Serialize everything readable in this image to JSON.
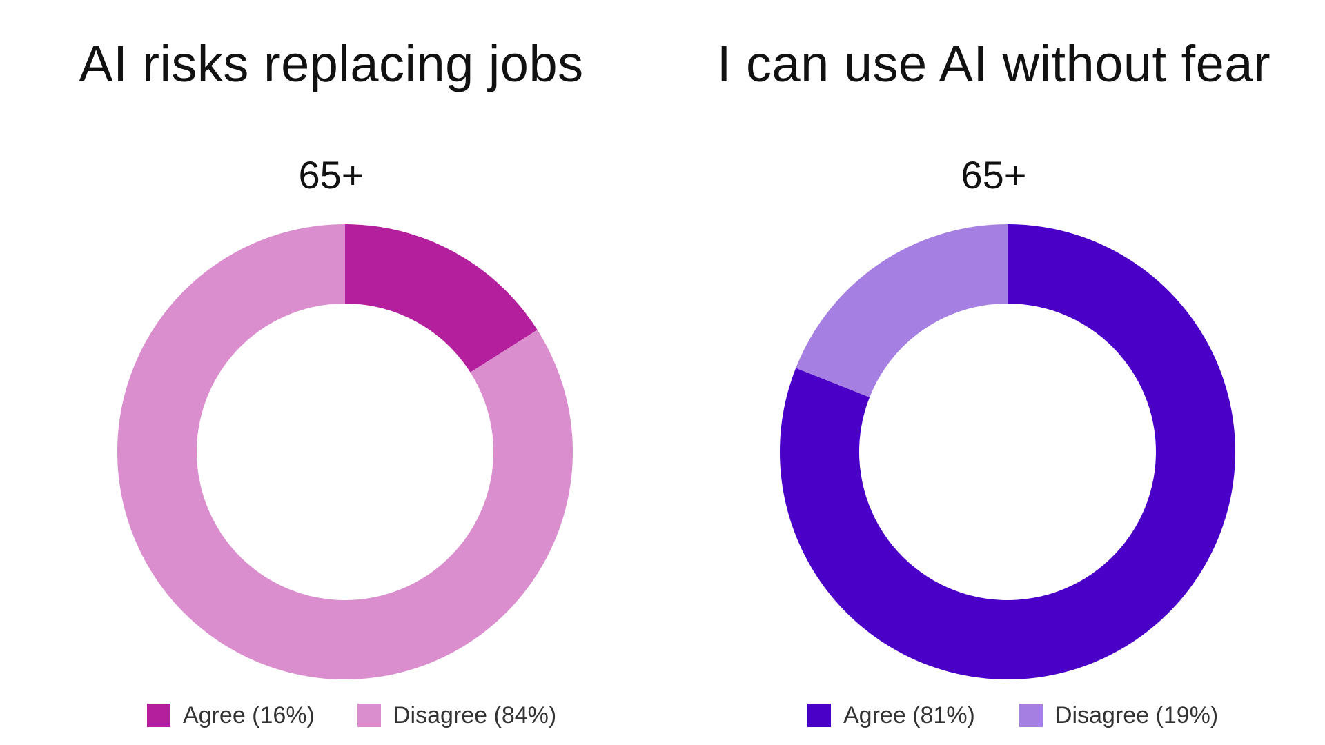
{
  "chart_data": [
    {
      "type": "pie",
      "title": "AI risks replacing jobs",
      "subtitle": "65+",
      "donut": true,
      "categories": [
        "Agree",
        "Disagree"
      ],
      "values": [
        16,
        84
      ],
      "colors": [
        "#b31f9c",
        "#da8ecd"
      ],
      "legend": {
        "position": "bottom",
        "entries": [
          "Agree (16%)",
          "Disagree (84%)"
        ]
      }
    },
    {
      "type": "pie",
      "title": "I can use AI without fear",
      "subtitle": "65+",
      "donut": true,
      "categories": [
        "Agree",
        "Disagree"
      ],
      "values": [
        81,
        19
      ],
      "colors": [
        "#4b00c8",
        "#a67fe2"
      ],
      "legend": {
        "position": "bottom",
        "entries": [
          "Agree (81%)",
          "Disagree (19%)"
        ]
      }
    }
  ]
}
